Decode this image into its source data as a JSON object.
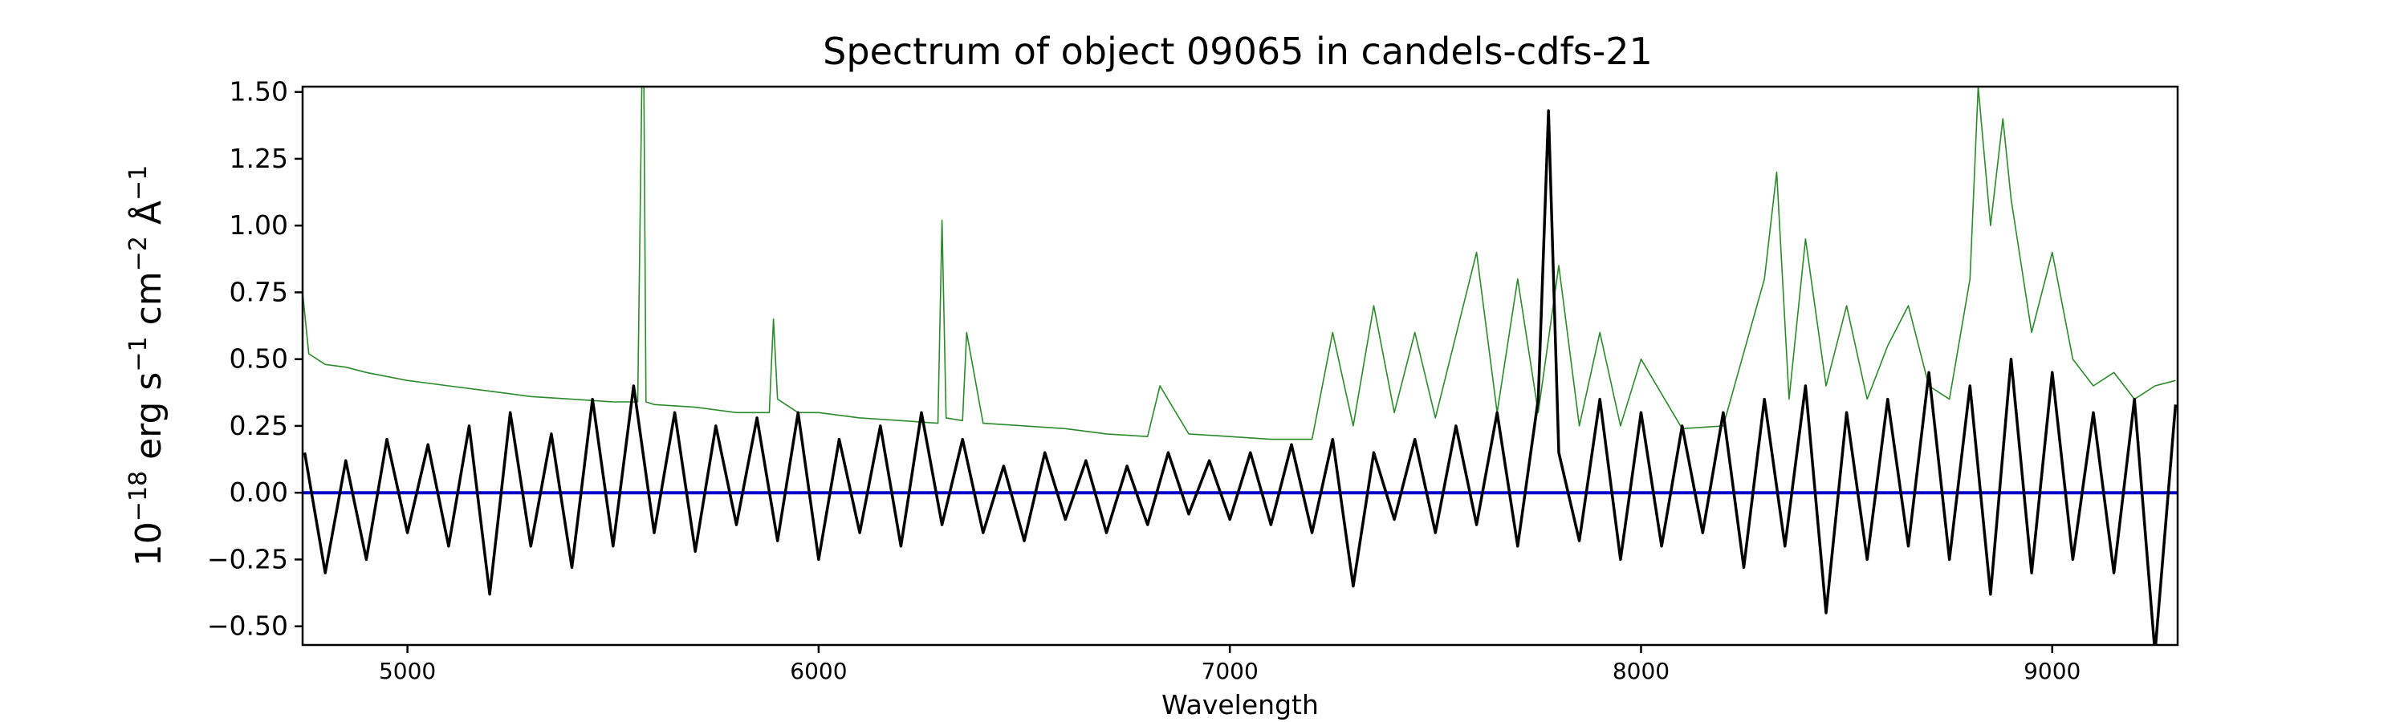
{
  "chart_data": {
    "type": "line",
    "title": "Spectrum of object 09065 in candels-cdfs-21",
    "xlabel": "Wavelength",
    "ylabel": {
      "base": "10",
      "exp": "−18",
      "unit": " erg s",
      "exp2": "−1",
      "unit2": " cm",
      "exp3": "−2",
      "unit3": " Å",
      "exp4": "−1"
    },
    "xlim": [
      4745,
      9305
    ],
    "ylim": [
      -0.57,
      1.52
    ],
    "xticks": [
      5000,
      6000,
      7000,
      8000,
      9000
    ],
    "xtick_labels": [
      "5000",
      "6000",
      "7000",
      "8000",
      "9000"
    ],
    "yticks": [
      1.5,
      1.25,
      1.0,
      0.75,
      0.5,
      0.25,
      0.0,
      -0.25,
      -0.5
    ],
    "ytick_labels": [
      "1.50",
      "1.25",
      "1.00",
      "0.75",
      "0.50",
      "0.25",
      "0.00",
      "−0.25",
      "−0.50"
    ],
    "grid": false,
    "colors": {
      "flux": "#000000",
      "error": "#2a8a2a",
      "model": "#0000cc"
    },
    "series": [
      {
        "role": "flux",
        "x": [
          4750,
          4800,
          4850,
          4900,
          4950,
          5000,
          5050,
          5100,
          5150,
          5200,
          5250,
          5300,
          5350,
          5400,
          5450,
          5500,
          5550,
          5600,
          5650,
          5700,
          5750,
          5800,
          5850,
          5900,
          5950,
          6000,
          6050,
          6100,
          6150,
          6200,
          6250,
          6300,
          6350,
          6400,
          6450,
          6500,
          6550,
          6600,
          6650,
          6700,
          6750,
          6800,
          6850,
          6900,
          6950,
          7000,
          7050,
          7100,
          7150,
          7200,
          7250,
          7300,
          7350,
          7400,
          7450,
          7500,
          7550,
          7600,
          7650,
          7700,
          7750,
          7775,
          7800,
          7850,
          7900,
          7950,
          8000,
          8050,
          8100,
          8150,
          8200,
          8250,
          8300,
          8350,
          8400,
          8450,
          8500,
          8550,
          8600,
          8650,
          8700,
          8750,
          8800,
          8850,
          8900,
          8950,
          9000,
          9050,
          9100,
          9150,
          9200,
          9250,
          9300
        ],
        "y": [
          0.15,
          -0.3,
          0.12,
          -0.25,
          0.2,
          -0.15,
          0.18,
          -0.2,
          0.25,
          -0.38,
          0.3,
          -0.2,
          0.22,
          -0.28,
          0.35,
          -0.2,
          0.4,
          -0.15,
          0.3,
          -0.22,
          0.25,
          -0.12,
          0.28,
          -0.18,
          0.3,
          -0.25,
          0.2,
          -0.15,
          0.25,
          -0.2,
          0.3,
          -0.12,
          0.2,
          -0.15,
          0.1,
          -0.18,
          0.15,
          -0.1,
          0.12,
          -0.15,
          0.1,
          -0.12,
          0.15,
          -0.08,
          0.12,
          -0.1,
          0.15,
          -0.12,
          0.18,
          -0.15,
          0.2,
          -0.35,
          0.15,
          -0.1,
          0.2,
          -0.15,
          0.25,
          -0.12,
          0.3,
          -0.2,
          0.35,
          1.43,
          0.15,
          -0.18,
          0.35,
          -0.25,
          0.3,
          -0.2,
          0.25,
          -0.15,
          0.3,
          -0.28,
          0.35,
          -0.2,
          0.4,
          -0.45,
          0.3,
          -0.25,
          0.35,
          -0.2,
          0.45,
          -0.25,
          0.4,
          -0.38,
          0.5,
          -0.3,
          0.45,
          -0.25,
          0.3,
          -0.3,
          0.35,
          -0.6,
          0.33
        ]
      },
      {
        "role": "error",
        "x": [
          4745,
          4760,
          4800,
          4850,
          4900,
          5000,
          5100,
          5200,
          5300,
          5400,
          5500,
          5560,
          5570,
          5575,
          5580,
          5600,
          5700,
          5800,
          5880,
          5890,
          5900,
          5950,
          6000,
          6100,
          6200,
          6290,
          6300,
          6310,
          6350,
          6360,
          6400,
          6500,
          6600,
          6700,
          6800,
          6830,
          6900,
          7000,
          7100,
          7200,
          7250,
          7300,
          7350,
          7400,
          7450,
          7500,
          7600,
          7650,
          7700,
          7750,
          7800,
          7850,
          7900,
          7950,
          8000,
          8100,
          8200,
          8300,
          8330,
          8360,
          8400,
          8450,
          8500,
          8550,
          8600,
          8650,
          8700,
          8750,
          8800,
          8820,
          8850,
          8880,
          8900,
          8950,
          9000,
          9050,
          9100,
          9150,
          9200,
          9250,
          9300
        ],
        "y": [
          0.75,
          0.52,
          0.48,
          0.47,
          0.45,
          0.42,
          0.4,
          0.38,
          0.36,
          0.35,
          0.34,
          0.34,
          1.52,
          1.52,
          0.34,
          0.33,
          0.32,
          0.3,
          0.3,
          0.65,
          0.35,
          0.3,
          0.3,
          0.28,
          0.27,
          0.26,
          1.02,
          0.28,
          0.27,
          0.6,
          0.26,
          0.25,
          0.24,
          0.22,
          0.21,
          0.4,
          0.22,
          0.21,
          0.2,
          0.2,
          0.6,
          0.25,
          0.7,
          0.3,
          0.6,
          0.28,
          0.9,
          0.3,
          0.8,
          0.3,
          0.85,
          0.25,
          0.6,
          0.25,
          0.5,
          0.24,
          0.25,
          0.8,
          1.2,
          0.35,
          0.95,
          0.4,
          0.7,
          0.35,
          0.55,
          0.7,
          0.4,
          0.35,
          0.8,
          1.52,
          1.0,
          1.4,
          1.1,
          0.6,
          0.9,
          0.5,
          0.4,
          0.45,
          0.35,
          0.4,
          0.42
        ]
      },
      {
        "role": "model",
        "x": [
          4745,
          9305
        ],
        "y": [
          0.0,
          0.0
        ]
      }
    ]
  }
}
